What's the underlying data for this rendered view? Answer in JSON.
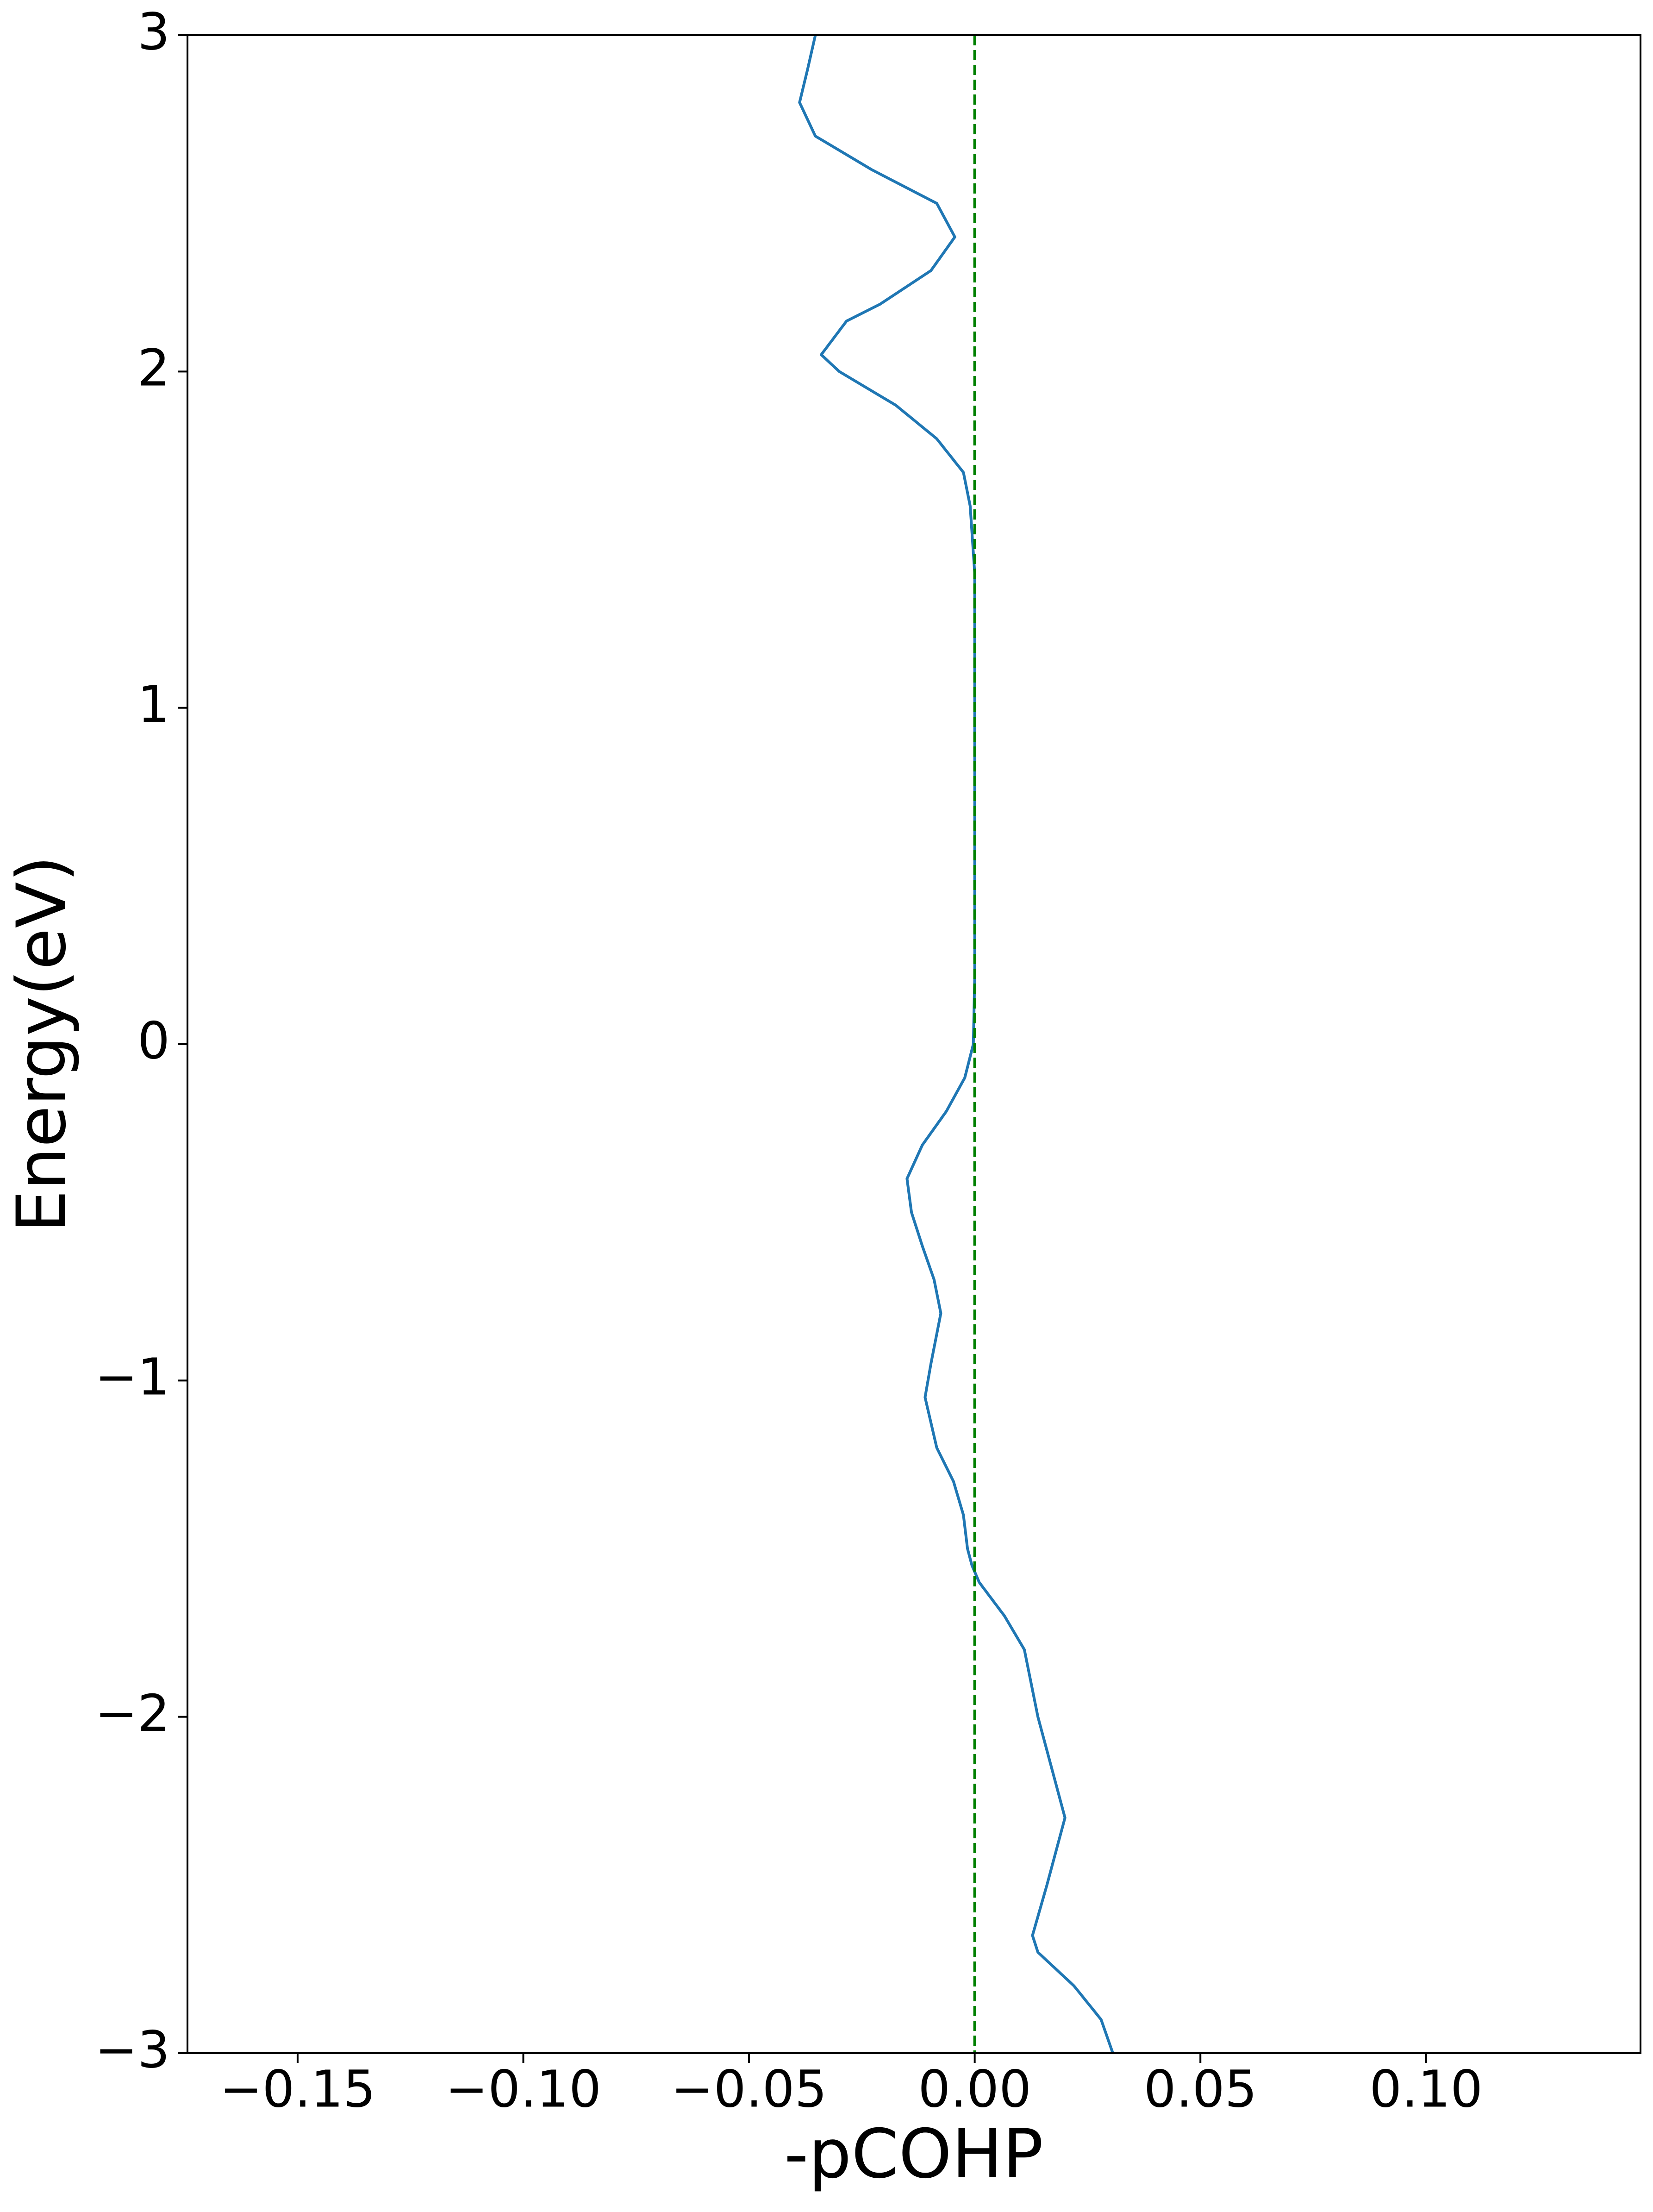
{
  "chart_data": {
    "type": "line",
    "orientation": "horizontal",
    "xlabel": "-pCOHP",
    "ylabel": "Energy(eV)",
    "xlim": [
      -0.1744,
      0.1475
    ],
    "ylim": [
      -3,
      3
    ],
    "xticks": [
      {
        "value": -0.15,
        "label": "−0.15"
      },
      {
        "value": -0.1,
        "label": "−0.10"
      },
      {
        "value": -0.05,
        "label": "−0.05"
      },
      {
        "value": 0,
        "label": "0.00"
      },
      {
        "value": 0.05,
        "label": "0.05"
      },
      {
        "value": 0.1,
        "label": "0.10"
      }
    ],
    "yticks": [
      {
        "value": -3,
        "label": "−3"
      },
      {
        "value": -2,
        "label": "−2"
      },
      {
        "value": -1,
        "label": "−1"
      },
      0,
      1,
      2,
      3
    ],
    "grid": false,
    "vline": {
      "x": 0,
      "color": "#008000"
    },
    "y": [
      -3.0,
      -2.9,
      -2.8,
      -2.7,
      -2.65,
      -2.5,
      -2.3,
      -2.2,
      -2.0,
      -1.8,
      -1.7,
      -1.6,
      -1.55,
      -1.5,
      -1.4,
      -1.3,
      -1.2,
      -1.05,
      -0.95,
      -0.8,
      -0.7,
      -0.6,
      -0.5,
      -0.4,
      -0.3,
      -0.2,
      -0.1,
      0.0,
      0.2,
      0.6,
      1.0,
      1.4,
      1.6,
      1.7,
      1.8,
      1.9,
      2.0,
      2.05,
      2.15,
      2.2,
      2.3,
      2.4,
      2.5,
      2.6,
      2.7,
      2.8,
      2.9,
      3.0
    ],
    "series": [
      {
        "color": "#1f77b4",
        "values": [
          0.0306,
          0.028,
          0.022,
          0.014,
          0.0128,
          0.016,
          0.02,
          0.018,
          0.014,
          0.011,
          0.0066,
          0.001,
          -0.0006,
          -0.0016,
          -0.0025,
          -0.0047,
          -0.0084,
          -0.011,
          -0.0097,
          -0.0075,
          -0.009,
          -0.0116,
          -0.014,
          -0.015,
          -0.0116,
          -0.0063,
          -0.0022,
          -0.0003,
          0,
          0,
          0,
          0,
          -0.001,
          -0.0025,
          -0.0084,
          -0.0175,
          -0.03,
          -0.034,
          -0.0284,
          -0.021,
          -0.0097,
          -0.0044,
          -0.0084,
          -0.0228,
          -0.0353,
          -0.0388,
          -0.037,
          -0.0353
        ]
      }
    ]
  }
}
